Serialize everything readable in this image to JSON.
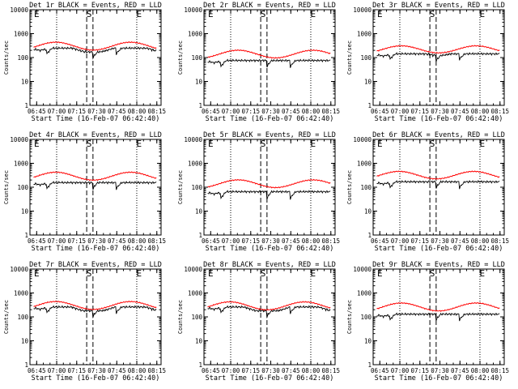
{
  "colors": {
    "background": "#ffffff",
    "axes": "#000000",
    "events": "#000000",
    "lld": "#ff0000"
  },
  "chart_data": {
    "type": "line",
    "layout": "3x3 grid",
    "shared": {
      "xlabel": "Start Time (16-Feb-07 06:42:40)",
      "ylabel": "Counts/sec",
      "yscale": "log",
      "ylim": [
        1,
        10000
      ],
      "ytick_values": [
        1,
        10,
        100,
        1000,
        10000
      ],
      "ytick_labels": [
        "1",
        "10",
        "100",
        "1000",
        "10000"
      ],
      "xlim_minutes": [
        -2.7,
        95.5
      ],
      "xtick_minutes": [
        2.33,
        17.33,
        32.33,
        47.33,
        62.33,
        77.33,
        92.33
      ],
      "xtick_labels": [
        "06:45",
        "07:00",
        "07:15",
        "07:30",
        "07:45",
        "08:00",
        "08:15"
      ],
      "series_names": [
        "Events (BLACK)",
        "LLD (RED)"
      ],
      "markers": {
        "dotted_minutes": [
          17.3,
          77.3
        ],
        "dashed_minutes": [
          39.8,
          44.5
        ],
        "labels": [
          {
            "text": "E",
            "minute": 0.3
          },
          {
            "text": "S",
            "minute": 39.6
          },
          {
            "text": "E",
            "minute": 77.0
          }
        ]
      }
    },
    "panels": [
      {
        "title": "Det 1r BLACK = Events, RED = LLD",
        "lld": {
          "base": 300,
          "amp": 0.38,
          "phase": 1.5
        },
        "events": {
          "level": 190,
          "drop": 0.58
        }
      },
      {
        "title": "Det 2r BLACK = Events, RED = LLD",
        "lld": {
          "base": 140,
          "amp": 0.37,
          "phase": 0.8
        },
        "events": {
          "level": 58,
          "drop": 0.55
        }
      },
      {
        "title": "Det 3r BLACK = Events, RED = LLD",
        "lld": {
          "base": 220,
          "amp": 0.34,
          "phase": 1.3
        },
        "events": {
          "level": 110,
          "drop": 0.6
        }
      },
      {
        "title": "Det 4r BLACK = Events, RED = LLD",
        "lld": {
          "base": 290,
          "amp": 0.38,
          "phase": 1.5
        },
        "events": {
          "level": 120,
          "drop": 0.56
        }
      },
      {
        "title": "Det 5r BLACK = Events, RED = LLD",
        "lld": {
          "base": 140,
          "amp": 0.37,
          "phase": 0.8
        },
        "events": {
          "level": 50,
          "drop": 0.52
        }
      },
      {
        "title": "Det 6r BLACK = Events, RED = LLD",
        "lld": {
          "base": 320,
          "amp": 0.36,
          "phase": 1.5
        },
        "events": {
          "level": 130,
          "drop": 0.56
        }
      },
      {
        "title": "Det 7r BLACK = Events, RED = LLD",
        "lld": {
          "base": 300,
          "amp": 0.38,
          "phase": 1.5
        },
        "events": {
          "level": 200,
          "drop": 0.58
        }
      },
      {
        "title": "Det 8r BLACK = Events, RED = LLD",
        "lld": {
          "base": 290,
          "amp": 0.38,
          "phase": 1.5
        },
        "events": {
          "level": 200,
          "drop": 0.58
        }
      },
      {
        "title": "Det 9r BLACK = Events, RED = LLD",
        "lld": {
          "base": 260,
          "amp": 0.38,
          "phase": 1.3
        },
        "events": {
          "level": 100,
          "drop": 0.58
        }
      }
    ]
  }
}
